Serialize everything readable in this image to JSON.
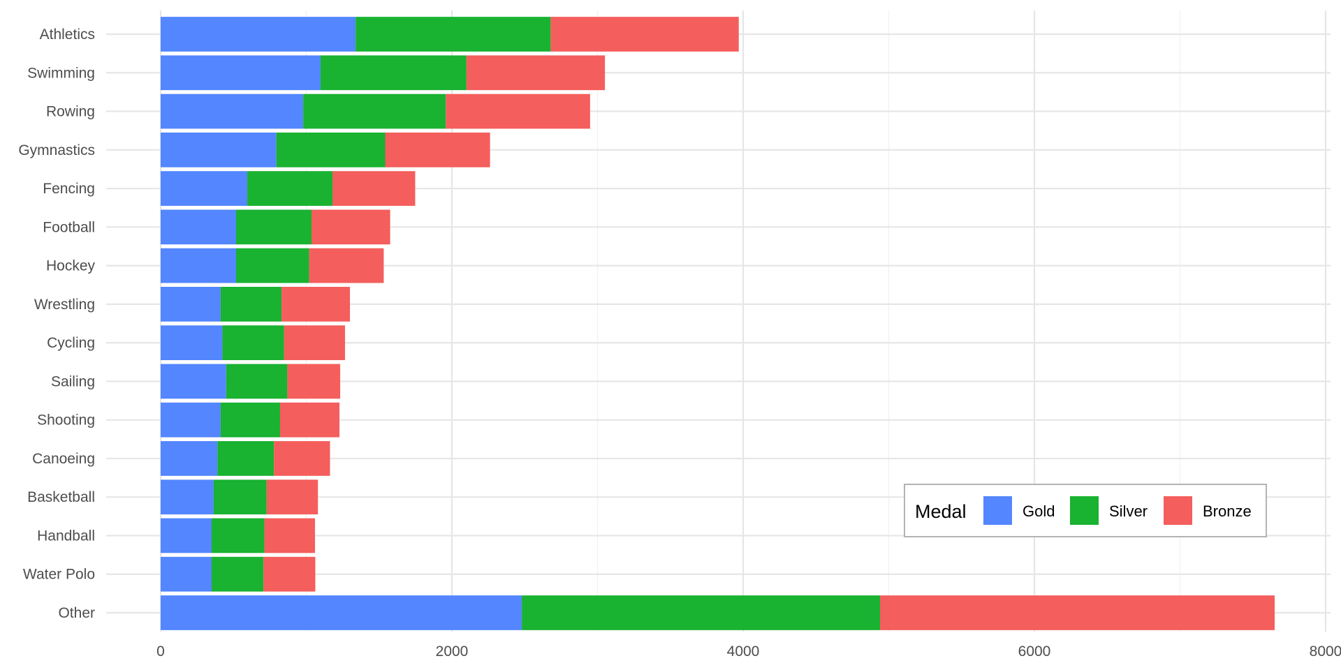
{
  "chart_data": {
    "type": "bar",
    "orientation": "horizontal",
    "stacked": true,
    "title": "",
    "xlabel": "",
    "ylabel": "",
    "xlim": [
      0,
      8000
    ],
    "x_ticks": [
      0,
      2000,
      4000,
      6000,
      8000
    ],
    "grid": true,
    "legend_position": "bottom-right",
    "legend_title": "Medal",
    "categories": [
      "Athletics",
      "Swimming",
      "Rowing",
      "Gymnastics",
      "Fencing",
      "Football",
      "Hockey",
      "Wrestling",
      "Cycling",
      "Sailing",
      "Shooting",
      "Canoeing",
      "Basketball",
      "Handball",
      "Water Polo",
      "Other"
    ],
    "series": [
      {
        "name": "Gold",
        "color": "#5386FF",
        "values": [
          1339,
          1098,
          979,
          795,
          595,
          518,
          518,
          412,
          424,
          450,
          412,
          390,
          364,
          350,
          350,
          2480
        ]
      },
      {
        "name": "Silver",
        "color": "#19B231",
        "values": [
          1339,
          1002,
          979,
          747,
          585,
          518,
          502,
          418,
          424,
          420,
          408,
          388,
          364,
          362,
          356,
          2460
        ]
      },
      {
        "name": "Bronze",
        "color": "#F45E5C",
        "values": [
          1292,
          951,
          991,
          720,
          568,
          540,
          512,
          470,
          418,
          363,
          408,
          385,
          352,
          348,
          356,
          2710
        ]
      }
    ]
  }
}
